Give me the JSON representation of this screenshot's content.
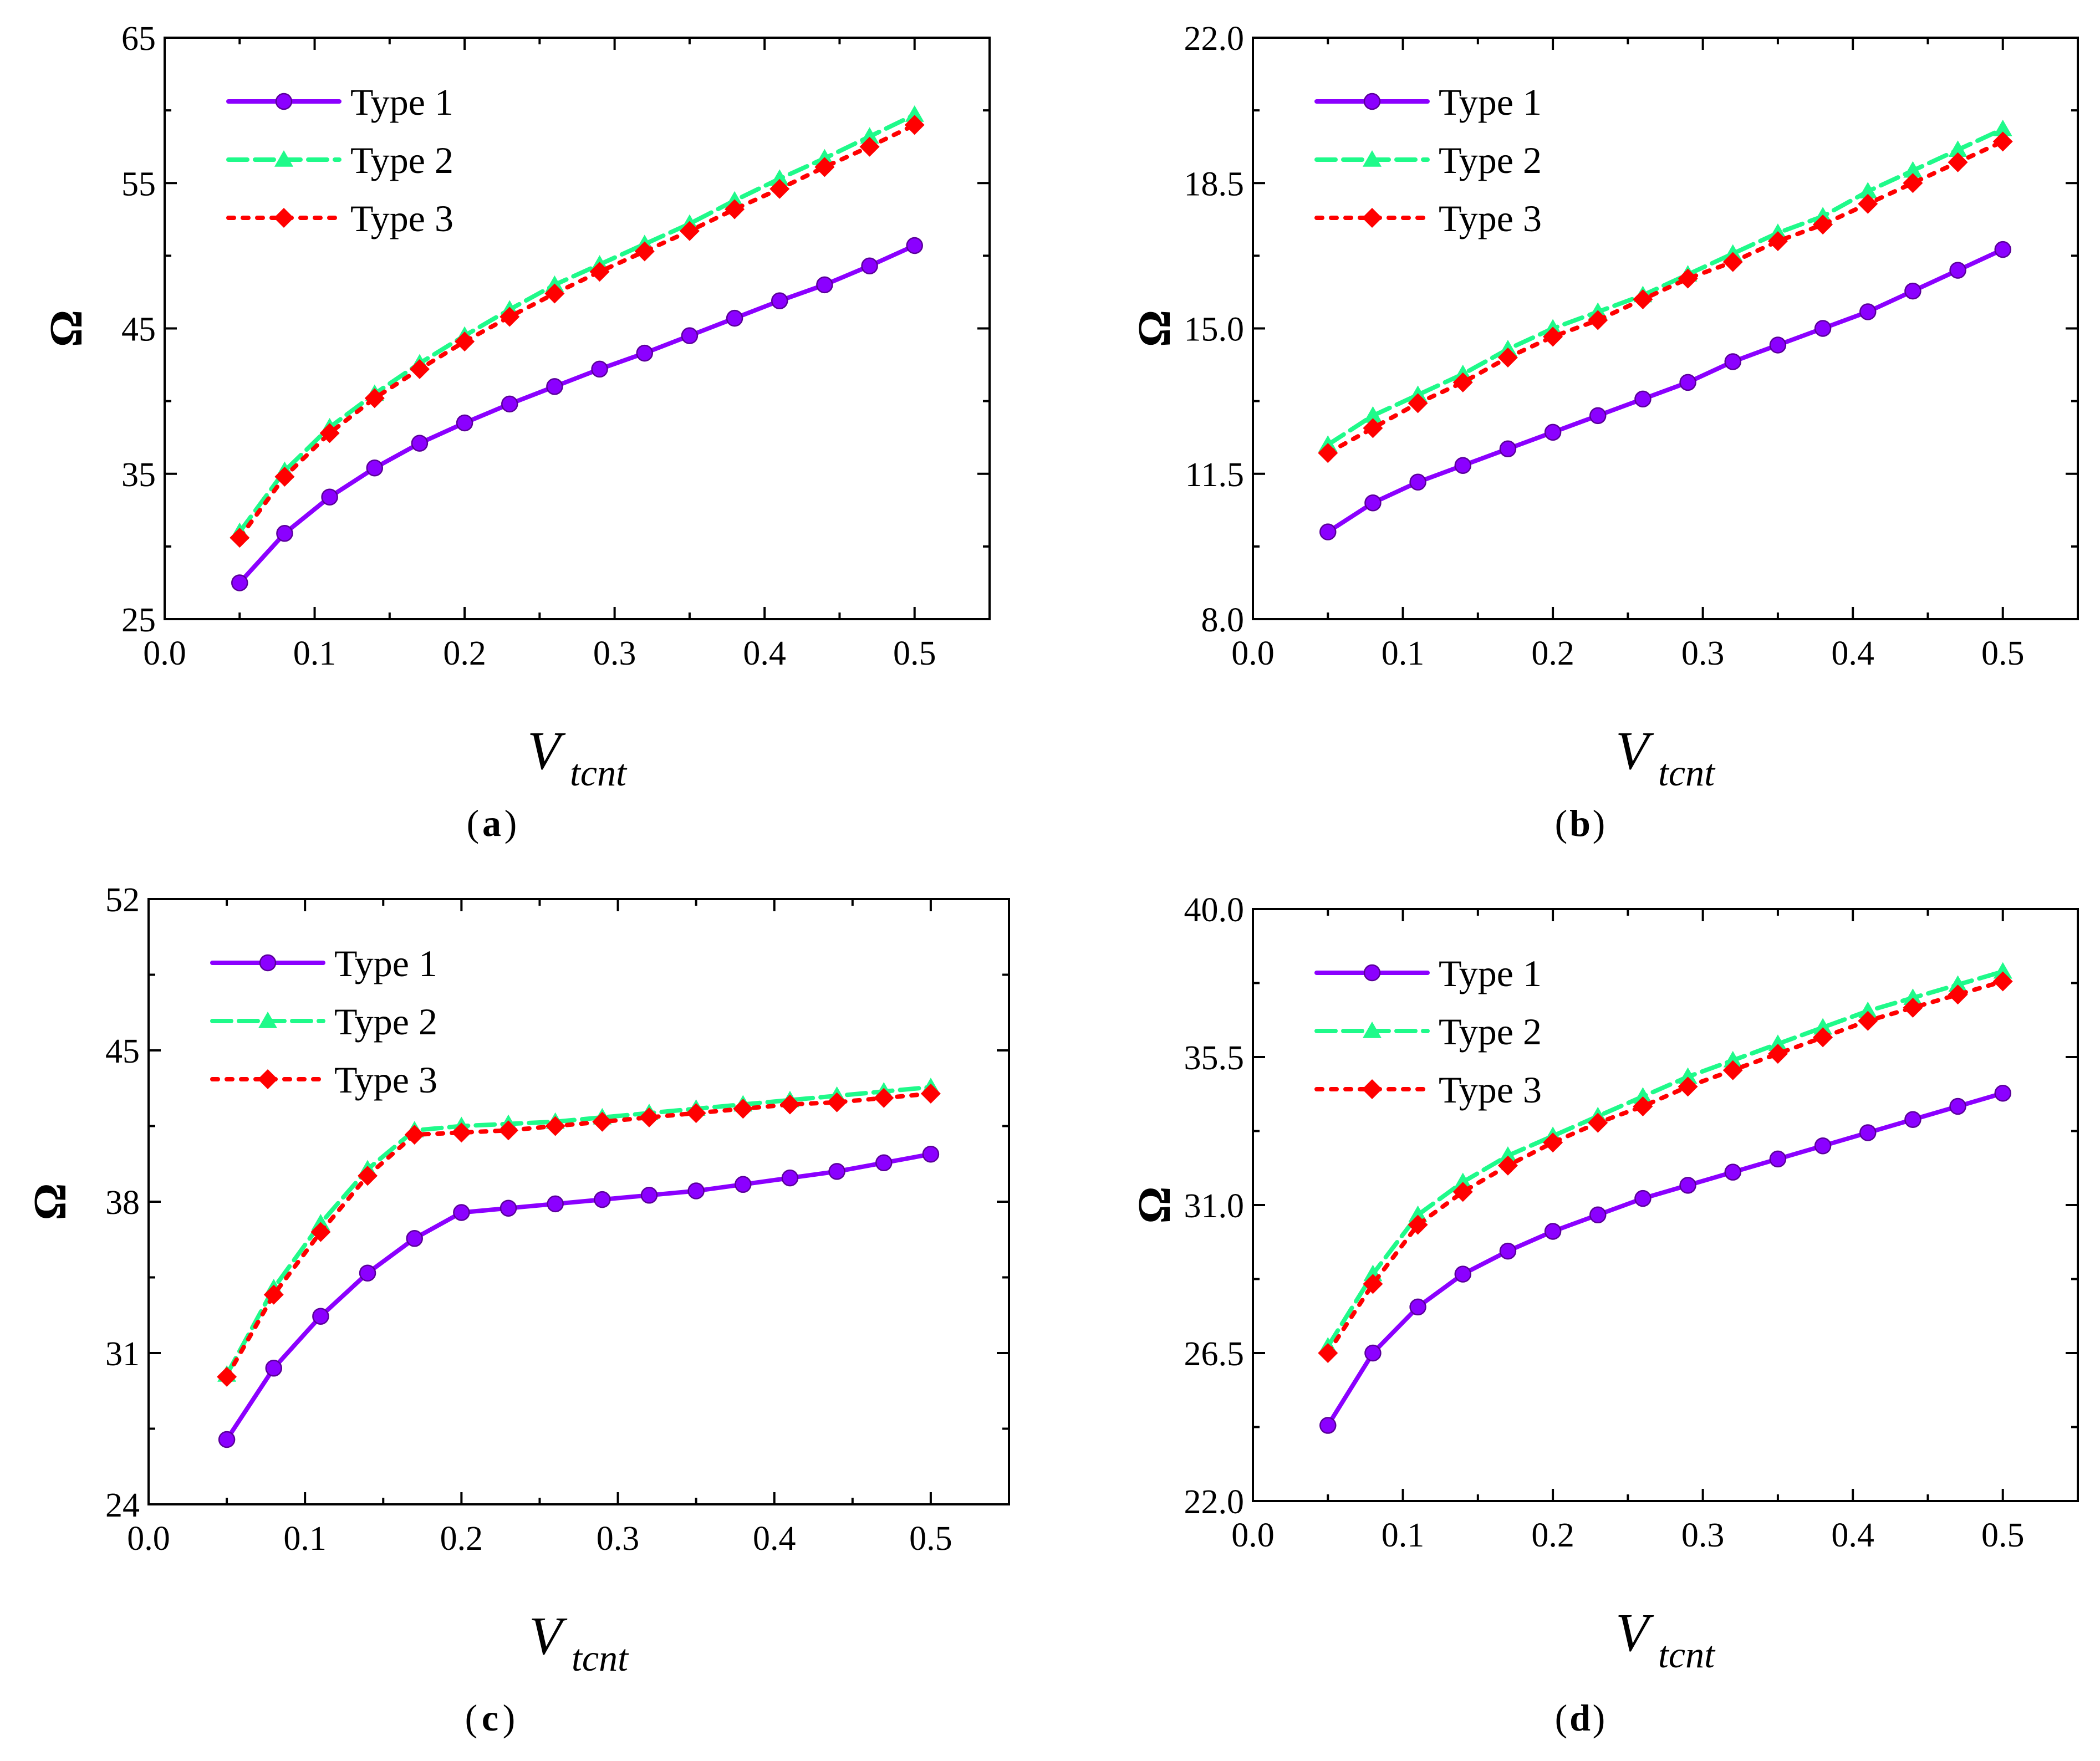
{
  "figure": {
    "colors": {
      "type1": "#8B00FF",
      "type2": "#1FFA8A",
      "type3": "#FF0000",
      "axis": "#000000"
    }
  },
  "chart_data": [
    {
      "type": "line",
      "panel_label": "a",
      "xlabel_main": "V",
      "xlabel_sub": "tcnt",
      "ylabel": "Ω",
      "xlim": [
        0.0,
        0.55
      ],
      "ylim": [
        25,
        65
      ],
      "xticks": [
        "0.0",
        "0.1",
        "0.2",
        "0.3",
        "0.4",
        "0.5"
      ],
      "yticks": [
        "25",
        "35",
        "45",
        "55",
        "65"
      ],
      "legend": [
        "Type 1",
        "Type 2",
        "Type 3"
      ],
      "legend_position": "top-left",
      "x": [
        0.05,
        0.08,
        0.11,
        0.14,
        0.17,
        0.2,
        0.23,
        0.26,
        0.29,
        0.32,
        0.35,
        0.38,
        0.41,
        0.44,
        0.47,
        0.5
      ],
      "series": [
        {
          "name": "Type 1",
          "values": [
            27.5,
            30.9,
            33.4,
            35.4,
            37.1,
            38.5,
            39.8,
            41.0,
            42.2,
            43.3,
            44.5,
            45.7,
            46.9,
            48.0,
            49.3,
            50.7
          ]
        },
        {
          "name": "Type 2",
          "values": [
            31.0,
            35.2,
            38.2,
            40.5,
            42.6,
            44.5,
            46.3,
            48.0,
            49.4,
            50.8,
            52.2,
            53.8,
            55.3,
            56.7,
            58.2,
            59.7
          ]
        },
        {
          "name": "Type 3",
          "values": [
            30.6,
            34.8,
            37.8,
            40.2,
            42.2,
            44.1,
            45.8,
            47.4,
            48.9,
            50.3,
            51.7,
            53.2,
            54.6,
            56.1,
            57.5,
            59.0
          ]
        }
      ]
    },
    {
      "type": "line",
      "panel_label": "b",
      "xlabel_main": "V",
      "xlabel_sub": "tcnt",
      "ylabel": "Ω",
      "xlim": [
        0.0,
        0.55
      ],
      "ylim": [
        8.0,
        22.0
      ],
      "xticks": [
        "0.0",
        "0.1",
        "0.2",
        "0.3",
        "0.4",
        "0.5"
      ],
      "yticks": [
        "8.0",
        "11.5",
        "15.0",
        "18.5",
        "22.0"
      ],
      "legend": [
        "Type 1",
        "Type 2",
        "Type 3"
      ],
      "legend_position": "top-left",
      "x": [
        0.05,
        0.08,
        0.11,
        0.14,
        0.17,
        0.2,
        0.23,
        0.26,
        0.29,
        0.32,
        0.35,
        0.38,
        0.41,
        0.44,
        0.47,
        0.5
      ],
      "series": [
        {
          "name": "Type 1",
          "values": [
            10.1,
            10.8,
            11.3,
            11.7,
            12.1,
            12.5,
            12.9,
            13.3,
            13.7,
            14.2,
            14.6,
            15.0,
            15.4,
            15.9,
            16.4,
            16.9
          ]
        },
        {
          "name": "Type 2",
          "values": [
            12.2,
            12.9,
            13.4,
            13.9,
            14.5,
            15.0,
            15.4,
            15.8,
            16.3,
            16.8,
            17.3,
            17.7,
            18.3,
            18.8,
            19.3,
            19.8
          ]
        },
        {
          "name": "Type 3",
          "values": [
            12.0,
            12.6,
            13.2,
            13.7,
            14.3,
            14.8,
            15.2,
            15.7,
            16.2,
            16.6,
            17.1,
            17.5,
            18.0,
            18.5,
            19.0,
            19.5
          ]
        }
      ]
    },
    {
      "type": "line",
      "panel_label": "c",
      "xlabel_main": "V",
      "xlabel_sub": "tcnt",
      "ylabel": "Ω",
      "xlim": [
        0.0,
        0.55
      ],
      "ylim": [
        24,
        52
      ],
      "xticks": [
        "0.0",
        "0.1",
        "0.2",
        "0.3",
        "0.4",
        "0.5"
      ],
      "yticks": [
        "24",
        "31",
        "38",
        "45",
        "52"
      ],
      "legend": [
        "Type 1",
        "Type 2",
        "Type 3"
      ],
      "legend_position": "top-left",
      "x": [
        0.05,
        0.08,
        0.11,
        0.14,
        0.17,
        0.2,
        0.23,
        0.26,
        0.29,
        0.32,
        0.35,
        0.38,
        0.41,
        0.44,
        0.47,
        0.5
      ],
      "series": [
        {
          "name": "Type 1",
          "values": [
            27.0,
            30.3,
            32.7,
            34.7,
            36.3,
            37.5,
            37.7,
            37.9,
            38.1,
            38.3,
            38.5,
            38.8,
            39.1,
            39.4,
            39.8,
            40.2
          ]
        },
        {
          "name": "Type 2",
          "values": [
            30.0,
            34.0,
            37.0,
            39.5,
            41.3,
            41.5,
            41.6,
            41.7,
            41.9,
            42.1,
            42.3,
            42.5,
            42.7,
            42.9,
            43.1,
            43.3
          ]
        },
        {
          "name": "Type 3",
          "values": [
            29.9,
            33.7,
            36.6,
            39.2,
            41.1,
            41.2,
            41.3,
            41.5,
            41.7,
            41.9,
            42.1,
            42.3,
            42.5,
            42.6,
            42.8,
            43.0
          ]
        }
      ]
    },
    {
      "type": "line",
      "panel_label": "d",
      "xlabel_main": "V",
      "xlabel_sub": "tcnt",
      "ylabel": "Ω",
      "xlim": [
        0.0,
        0.55
      ],
      "ylim": [
        22.0,
        40.0
      ],
      "xticks": [
        "0.0",
        "0.1",
        "0.2",
        "0.3",
        "0.4",
        "0.5"
      ],
      "yticks": [
        "22.0",
        "26.5",
        "31.0",
        "35.5",
        "40.0"
      ],
      "legend": [
        "Type 1",
        "Type 2",
        "Type 3"
      ],
      "legend_position": "top-left",
      "x": [
        0.05,
        0.08,
        0.11,
        0.14,
        0.17,
        0.2,
        0.23,
        0.26,
        0.29,
        0.32,
        0.35,
        0.38,
        0.41,
        0.44,
        0.47,
        0.5
      ],
      "series": [
        {
          "name": "Type 1",
          "values": [
            24.3,
            26.5,
            27.9,
            28.9,
            29.6,
            30.2,
            30.7,
            31.2,
            31.6,
            32.0,
            32.4,
            32.8,
            33.2,
            33.6,
            34.0,
            34.4
          ]
        },
        {
          "name": "Type 2",
          "values": [
            26.7,
            28.9,
            30.7,
            31.7,
            32.5,
            33.1,
            33.7,
            34.3,
            34.9,
            35.4,
            35.9,
            36.4,
            36.9,
            37.3,
            37.7,
            38.1
          ]
        },
        {
          "name": "Type 3",
          "values": [
            26.5,
            28.6,
            30.4,
            31.4,
            32.2,
            32.9,
            33.5,
            34.0,
            34.6,
            35.1,
            35.6,
            36.1,
            36.6,
            37.0,
            37.4,
            37.8
          ]
        }
      ]
    }
  ]
}
